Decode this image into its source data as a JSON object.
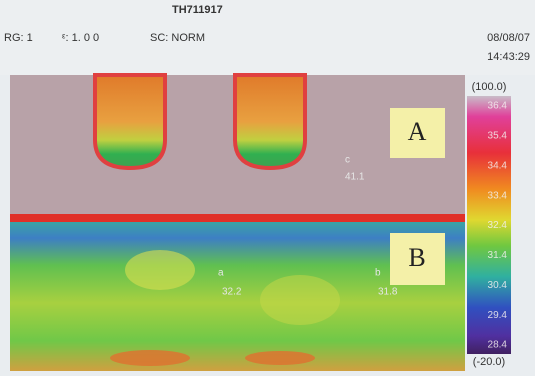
{
  "header": {
    "title": "TH711917",
    "range": "RG: 1",
    "emissivity": "ᵋ: 1. 0 0",
    "scale_mode": "SC: NORM",
    "date": "08/08/07",
    "time": "14:43:29"
  },
  "color_scale": {
    "max": "(100.0)",
    "min": "(-20.0)",
    "labels": [
      "36.4",
      "35.4",
      "34.4",
      "33.4",
      "32.4",
      "31.4",
      "30.4",
      "29.4",
      "28.4"
    ]
  },
  "cursors": [
    {
      "id": "c",
      "reading": "41.1"
    },
    {
      "id": "a",
      "reading": "32.2"
    },
    {
      "id": "b",
      "reading": "31.8"
    }
  ],
  "regions": [
    "A",
    "B"
  ]
}
